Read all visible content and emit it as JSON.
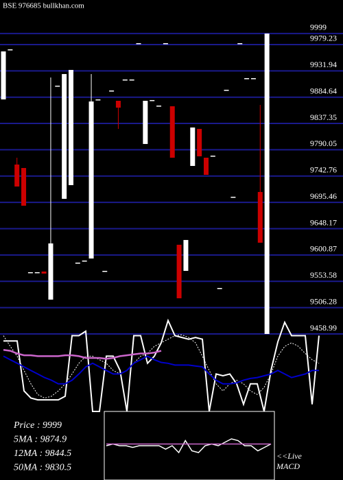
{
  "chart_data": {
    "type": "candlestick",
    "title": "BSE 976685 bullkhan.com",
    "up_color": "#ffffff",
    "down_color": "#cc0000",
    "grid_color": "#1a1a8c",
    "grid": true,
    "ylim": [
      9458.99,
      10010
    ],
    "yticks": [
      9999,
      9979.23,
      9931.94,
      9884.64,
      9837.35,
      9790.05,
      9742.76,
      9695.46,
      9648.17,
      9600.87,
      9553.58,
      9506.28,
      9458.99
    ],
    "ohlc": [
      [
        9880.6,
        9966.9,
        9880.6,
        9966.9
      ],
      [
        9970.6,
        9970.6,
        9970.6,
        9970.6
      ],
      [
        9763.5,
        9775.8,
        9724.0,
        9724.0
      ],
      [
        9757.3,
        9757.3,
        9689.5,
        9689.5
      ],
      [
        9570.0,
        9570.0,
        9570.0,
        9570.0
      ],
      [
        9570.0,
        9570.0,
        9570.0,
        9570.0
      ],
      [
        9571.2,
        9571.2,
        9567.5,
        9567.5
      ],
      [
        9520.7,
        9920.0,
        9520.7,
        9621.7
      ],
      [
        9905.3,
        9905.3,
        9905.3,
        9905.3
      ],
      [
        9701.9,
        9926.2,
        9701.9,
        9926.2
      ],
      [
        9726.5,
        9933.6,
        9726.5,
        9933.6
      ],
      [
        9587.2,
        9587.2,
        9587.2,
        9587.2
      ],
      [
        9590.9,
        9590.9,
        9590.9,
        9590.9
      ],
      [
        9594.6,
        9926.2,
        9594.6,
        9876.9
      ],
      [
        9880.6,
        9880.6,
        9880.6,
        9880.6
      ],
      [
        9572.4,
        9572.4,
        9572.4,
        9572.4
      ],
      [
        9896.6,
        9896.6,
        9896.6,
        9896.6
      ],
      [
        9878.1,
        9878.1,
        9827.6,
        9865.8
      ],
      [
        9916.4,
        9916.4,
        9916.4,
        9916.4
      ],
      [
        9916.4,
        9916.4,
        9916.4,
        9916.4
      ],
      [
        9981.7,
        9981.7,
        9981.7,
        9981.7
      ],
      [
        9800.5,
        9878.1,
        9800.5,
        9878.1
      ],
      [
        9879.4,
        9879.4,
        9879.4,
        9879.4
      ],
      [
        9869.5,
        9869.5,
        9869.5,
        9869.5
      ],
      [
        9981.7,
        9981.7,
        9981.7,
        9981.7
      ],
      [
        9868.3,
        9868.3,
        9775.8,
        9775.8
      ],
      [
        9619.3,
        9619.3,
        9523.1,
        9523.1
      ],
      [
        9572.4,
        9627.9,
        9572.4,
        9627.9
      ],
      [
        9761.0,
        9830.1,
        9761.0,
        9830.1
      ],
      [
        9827.6,
        9827.6,
        9778.3,
        9778.3
      ],
      [
        9775.8,
        9775.8,
        9745.0,
        9745.0
      ],
      [
        9779.5,
        9779.5,
        9779.5,
        9779.5
      ],
      [
        9541.6,
        9541.6,
        9541.6,
        9541.6
      ],
      [
        9897.9,
        9897.9,
        9897.9,
        9897.9
      ],
      [
        9705.6,
        9705.6,
        9705.6,
        9705.6
      ],
      [
        9981.7,
        9981.7,
        9981.7,
        9981.7
      ],
      [
        9918.8,
        9918.8,
        9918.8,
        9918.8
      ],
      [
        9918.8,
        9918.8,
        9918.8,
        9918.8
      ],
      [
        9714.2,
        9870.7,
        9623.0,
        9623.0
      ],
      [
        9400,
        9999,
        9400,
        9999
      ]
    ],
    "indicator_lim": [
      0,
      105
    ],
    "indicators": [
      {
        "color": "#ffffff",
        "dash": false,
        "values": [
          79,
          79,
          79,
          23,
          15,
          13,
          13,
          13,
          13,
          17,
          85,
          85,
          90,
          0,
          0,
          62,
          62,
          46,
          0,
          85,
          85,
          54,
          62,
          77,
          102,
          85,
          83,
          81,
          83,
          81,
          0,
          42,
          40,
          42,
          31,
          8,
          31,
          31,
          0,
          46,
          78,
          100,
          85,
          85,
          85,
          8,
          85
        ]
      },
      {
        "color": "#ffffff",
        "dash": true,
        "values": [
          85,
          73,
          62,
          46,
          31,
          19,
          15,
          17,
          23,
          31,
          42,
          54,
          62,
          62,
          58,
          54,
          46,
          42,
          46,
          54,
          62,
          65,
          73,
          77,
          81,
          85,
          86,
          83,
          77,
          62,
          46,
          31,
          23,
          31,
          35,
          31,
          23,
          19,
          27,
          42,
          62,
          73,
          77,
          73,
          65,
          58,
          54
        ]
      },
      {
        "color": "#0000cc",
        "dash": false,
        "values": [
          62,
          58,
          54,
          50,
          46,
          42,
          38,
          35,
          31,
          31,
          35,
          42,
          50,
          54,
          50,
          46,
          42,
          42,
          46,
          54,
          58,
          62,
          58,
          55,
          54,
          52,
          52,
          52,
          51,
          50,
          42,
          35,
          31,
          31,
          32,
          35,
          37,
          38,
          40,
          42,
          46,
          42,
          38,
          40,
          42,
          46,
          46
        ]
      },
      {
        "color": "#cc66cc",
        "dash": false,
        "values": [
          69,
          68,
          65,
          63,
          63,
          62,
          62,
          62,
          62,
          63,
          63,
          62,
          60,
          60,
          60,
          59,
          60,
          62,
          63,
          64,
          65,
          65,
          66,
          68
        ]
      }
    ],
    "info": [
      "Price  : 9999",
      "5MA : 9874.9",
      "12MA : 9844.5",
      "50MA : 9830.5"
    ],
    "macd_label": [
      "<<Live",
      "MACD"
    ],
    "macd_lim": [
      -2,
      2
    ],
    "macd": [
      {
        "color": "#ffffff",
        "values": [
          0,
          0.1,
          0,
          0,
          -0.1,
          0,
          0,
          0,
          0,
          -0.2,
          0,
          -0.4,
          0.3,
          -0.3,
          -0.4,
          0,
          0.1,
          0,
          0.2,
          0.4,
          0.3,
          0,
          0,
          -0.3,
          -0.1,
          0.1
        ]
      },
      {
        "color": "#cc66cc",
        "values": [
          0.1,
          0.1,
          0.1,
          0.1,
          0.1,
          0.1,
          0.1,
          0.1,
          0.1,
          0.1,
          0.1,
          0.1,
          0.1,
          0.1,
          0.1,
          0.1,
          0.1,
          0.1,
          0.1,
          0.1,
          0.1,
          0.1,
          0.1,
          0.1,
          0.1,
          0.1
        ]
      }
    ]
  }
}
